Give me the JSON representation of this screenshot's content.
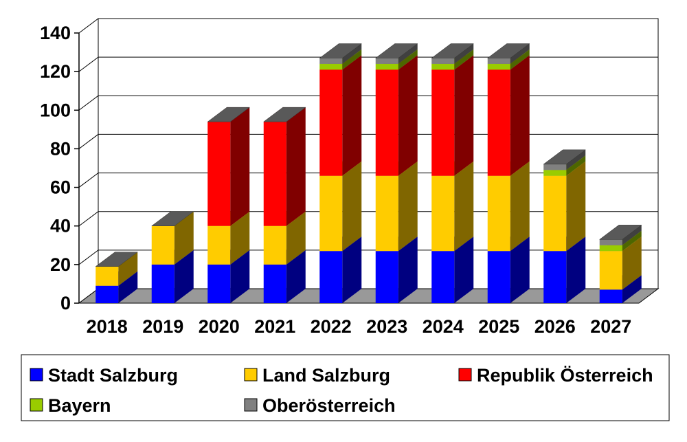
{
  "chart_data": {
    "type": "bar",
    "stacked": true,
    "three_d": true,
    "categories": [
      "2018",
      "2019",
      "2020",
      "2021",
      "2022",
      "2023",
      "2024",
      "2025",
      "2026",
      "2027"
    ],
    "series": [
      {
        "name": "Stadt Salzburg",
        "color": "#0000ff",
        "values": [
          9,
          20,
          20,
          20,
          27,
          27,
          27,
          27,
          27,
          7
        ]
      },
      {
        "name": "Land Salzburg",
        "color": "#ffcc00",
        "values": [
          10,
          20,
          20,
          20,
          39,
          39,
          39,
          39,
          39,
          20
        ]
      },
      {
        "name": "Republik Österreich",
        "color": "#ff0000",
        "values": [
          0,
          0,
          54,
          54,
          55,
          55,
          55,
          55,
          0,
          0
        ]
      },
      {
        "name": "Bayern",
        "color": "#99cc00",
        "values": [
          0,
          0,
          0,
          0,
          3,
          3,
          3,
          3,
          3,
          3
        ]
      },
      {
        "name": "Oberösterreich",
        "color": "#808080",
        "values": [
          0,
          0,
          0,
          0,
          3,
          3,
          3,
          3,
          3,
          3
        ]
      }
    ],
    "y_ticks": [
      "0",
      "20",
      "40",
      "60",
      "80",
      "100",
      "120",
      "140"
    ],
    "ylim": [
      0,
      140
    ],
    "ystep": 20,
    "grid": true,
    "legend_position": "bottom",
    "title": "",
    "xlabel": "",
    "ylabel": ""
  }
}
